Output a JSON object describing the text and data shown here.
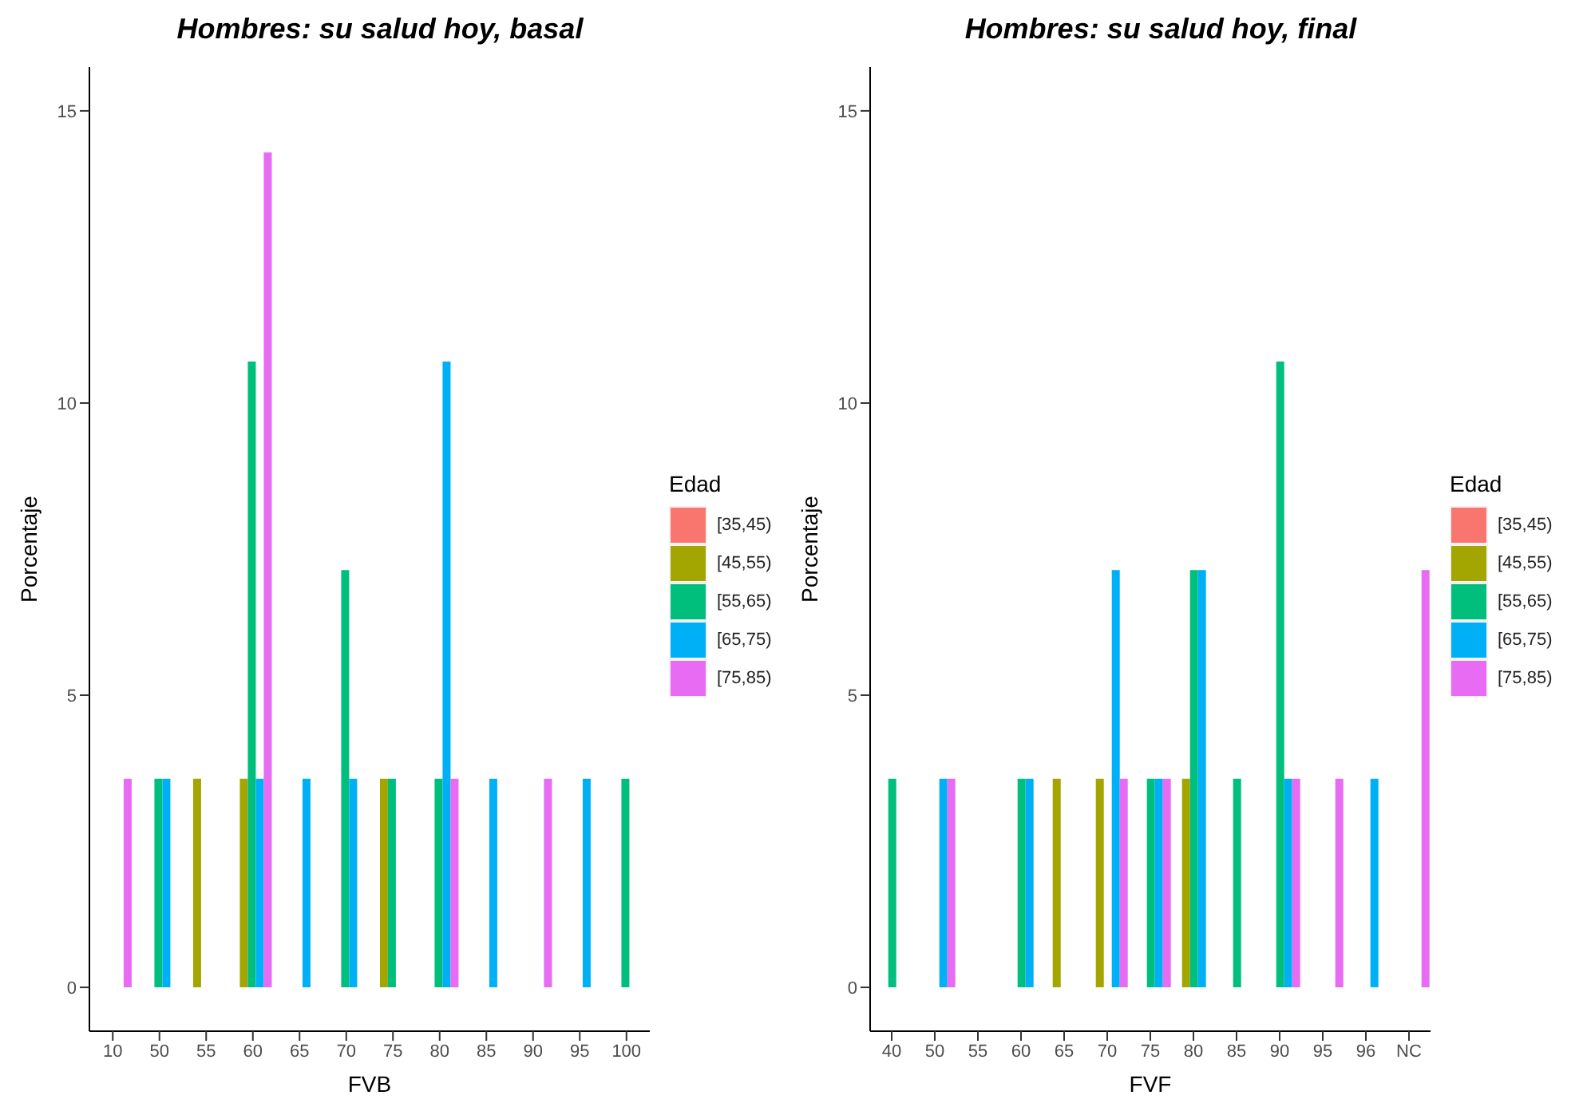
{
  "chart_data": [
    {
      "type": "bar",
      "title": "Hombres: su salud hoy, basal",
      "xlabel": "FVB",
      "ylabel": "Porcentaje",
      "legend_title": "Edad",
      "legend": "right",
      "grid": false,
      "categories": [
        "10",
        "50",
        "55",
        "60",
        "65",
        "70",
        "75",
        "80",
        "85",
        "90",
        "95",
        "100"
      ],
      "ylim": [
        -0.75,
        15.75
      ],
      "yticks": [
        0,
        5,
        10,
        15
      ],
      "series": [
        {
          "name": "[35,45)",
          "color": "#f8766d",
          "values": [
            0,
            0,
            0,
            0,
            0,
            0,
            0,
            0,
            0,
            0,
            0,
            0
          ]
        },
        {
          "name": "[45,55)",
          "color": "#a3a500",
          "values": [
            0,
            0,
            3.57,
            3.57,
            0,
            0,
            3.57,
            0,
            0,
            0,
            0,
            0
          ]
        },
        {
          "name": "[55,65)",
          "color": "#00bf7d",
          "values": [
            0,
            3.57,
            0,
            10.71,
            0,
            7.14,
            3.57,
            3.57,
            0,
            0,
            0,
            3.57
          ]
        },
        {
          "name": "[65,75)",
          "color": "#00b0f6",
          "values": [
            0,
            3.57,
            0,
            3.57,
            3.57,
            3.57,
            0,
            10.71,
            3.57,
            0,
            3.57,
            0
          ]
        },
        {
          "name": "[75,85)",
          "color": "#e76bf3",
          "values": [
            3.57,
            0,
            0,
            14.29,
            0,
            0,
            0,
            3.57,
            0,
            3.57,
            0,
            0
          ]
        }
      ]
    },
    {
      "type": "bar",
      "title": "Hombres: su salud hoy, final",
      "xlabel": "FVF",
      "ylabel": "Porcentaje",
      "legend_title": "Edad",
      "legend": "right",
      "grid": false,
      "categories": [
        "40",
        "50",
        "55",
        "60",
        "65",
        "70",
        "75",
        "80",
        "85",
        "90",
        "95",
        "96",
        "NC"
      ],
      "ylim": [
        -0.75,
        15.75
      ],
      "yticks": [
        0,
        5,
        10,
        15
      ],
      "series": [
        {
          "name": "[35,45)",
          "color": "#f8766d",
          "values": [
            0,
            0,
            0,
            0,
            0,
            0,
            0,
            0,
            0,
            0,
            0,
            0,
            0
          ]
        },
        {
          "name": "[45,55)",
          "color": "#a3a500",
          "values": [
            0,
            0,
            0,
            0,
            3.57,
            3.57,
            0,
            3.57,
            0,
            0,
            0,
            0,
            0
          ]
        },
        {
          "name": "[55,65)",
          "color": "#00bf7d",
          "values": [
            3.57,
            0,
            0,
            3.57,
            0,
            0,
            3.57,
            7.14,
            3.57,
            10.71,
            0,
            0,
            0
          ]
        },
        {
          "name": "[65,75)",
          "color": "#00b0f6",
          "values": [
            0,
            3.57,
            0,
            3.57,
            0,
            7.14,
            3.57,
            7.14,
            0,
            3.57,
            0,
            3.57,
            0
          ]
        },
        {
          "name": "[75,85)",
          "color": "#e76bf3",
          "values": [
            0,
            3.57,
            0,
            0,
            0,
            3.57,
            3.57,
            0,
            0,
            3.57,
            3.57,
            0,
            7.14
          ]
        }
      ]
    }
  ]
}
